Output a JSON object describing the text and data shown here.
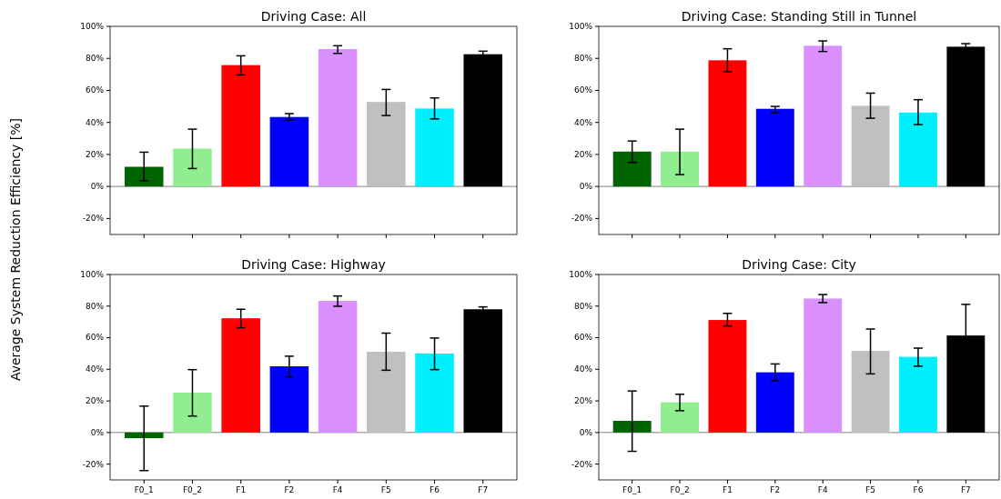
{
  "chart_data": [
    {
      "type": "bar",
      "title": "Driving Case: All",
      "ylabel": "Average System Reduction Efficiency [%]",
      "categories": [
        null,
        null,
        null,
        null,
        null,
        null,
        null,
        null
      ],
      "values": [
        12.3,
        23.7,
        75.8,
        43.4,
        85.8,
        52.8,
        48.7,
        82.6
      ],
      "colors": [
        "#006400",
        "#90ee90",
        "#ff0000",
        "#0000ff",
        "#da91ff",
        "#c0c0c0",
        "#00efff",
        "#000000"
      ],
      "errors": [
        [
          3.6,
          21.4
        ],
        [
          11.2,
          35.8
        ],
        [
          69.7,
          81.6
        ],
        [
          41.3,
          45.5
        ],
        [
          83.1,
          87.9
        ],
        [
          44.3,
          60.6
        ],
        [
          42.2,
          55.3
        ],
        1.9
      ],
      "ylim": [
        -30,
        100
      ],
      "yticks": [
        {
          "value": -20,
          "label": "-20%"
        },
        {
          "value": 0,
          "label": "0%"
        },
        {
          "value": 20,
          "label": "20%"
        },
        {
          "value": 40,
          "label": "40%"
        },
        {
          "value": 60,
          "label": "60%"
        },
        {
          "value": 80,
          "label": "80%"
        },
        {
          "value": 100,
          "label": "100%"
        }
      ],
      "ref_lines": [
        {
          "axis": "y",
          "value": 0,
          "color": "#808080"
        }
      ]
    },
    {
      "type": "bar",
      "title": "Driving Case: Standing Still in Tunnel",
      "categories": [
        null,
        null,
        null,
        null,
        null,
        null,
        null,
        null
      ],
      "values": [
        21.8,
        21.8,
        78.8,
        48.5,
        87.9,
        50.4,
        46.2,
        87.3
      ],
      "colors": [
        "#006400",
        "#90ee90",
        "#ff0000",
        "#0000ff",
        "#da91ff",
        "#c0c0c0",
        "#00efff",
        "#000000"
      ],
      "errors": [
        [
          15.0,
          28.4
        ],
        [
          7.4,
          35.8
        ],
        [
          71.6,
          86.0
        ],
        [
          46.2,
          50.0
        ],
        [
          84.3,
          90.9
        ],
        [
          42.6,
          58.3
        ],
        [
          38.6,
          54.2
        ],
        1.9
      ],
      "ylim": [
        -30,
        100
      ],
      "yticks": [
        {
          "value": -20,
          "label": "-20%"
        },
        {
          "value": 0,
          "label": "0%"
        },
        {
          "value": 20,
          "label": "20%"
        },
        {
          "value": 40,
          "label": "40%"
        },
        {
          "value": 60,
          "label": "60%"
        },
        {
          "value": 80,
          "label": "80%"
        },
        {
          "value": 100,
          "label": "100%"
        }
      ],
      "ref_lines": [
        {
          "axis": "y",
          "value": 0,
          "color": "#808080"
        }
      ]
    },
    {
      "type": "bar",
      "title": "Driving Case: Highway",
      "categories": [
        "F0_1",
        "F0_2",
        "F1",
        "F2",
        "F4",
        "F5",
        "F6",
        "F7"
      ],
      "values": [
        -3.6,
        25.2,
        72.3,
        41.9,
        83.3,
        51.1,
        50.0,
        78.0
      ],
      "colors": [
        "#006400",
        "#90ee90",
        "#ff0000",
        "#0000ff",
        "#da91ff",
        "#c0c0c0",
        "#00efff",
        "#000000"
      ],
      "errors": [
        [
          -24.1,
          16.7
        ],
        [
          10.4,
          39.8
        ],
        [
          66.3,
          78.0
        ],
        [
          35.2,
          48.3
        ],
        [
          79.9,
          86.4
        ],
        [
          39.4,
          62.9
        ],
        [
          39.8,
          59.8
        ],
        1.5
      ],
      "ylim": [
        -30,
        100
      ],
      "yticks": [
        {
          "value": -20,
          "label": "-20%"
        },
        {
          "value": 0,
          "label": "0%"
        },
        {
          "value": 20,
          "label": "20%"
        },
        {
          "value": 40,
          "label": "40%"
        },
        {
          "value": 60,
          "label": "60%"
        },
        {
          "value": 80,
          "label": "80%"
        },
        {
          "value": 100,
          "label": "100%"
        }
      ],
      "ref_lines": [
        {
          "axis": "y",
          "value": 0,
          "color": "#808080"
        }
      ]
    },
    {
      "type": "bar",
      "title": "Driving Case: City",
      "categories": [
        "F0_1",
        "F0_2",
        "F1",
        "F2",
        "F4",
        "F5",
        "F6",
        "F7"
      ],
      "values": [
        7.4,
        19.1,
        71.2,
        38.1,
        84.8,
        51.7,
        47.9,
        61.4
      ],
      "colors": [
        "#006400",
        "#90ee90",
        "#ff0000",
        "#0000ff",
        "#da91ff",
        "#c0c0c0",
        "#00efff",
        "#000000"
      ],
      "errors": [
        [
          -11.9,
          26.3
        ],
        [
          13.8,
          24.2
        ],
        [
          67.4,
          75.4
        ],
        [
          32.8,
          43.4
        ],
        [
          82.2,
          87.3
        ],
        [
          37.1,
          65.5
        ],
        [
          42.0,
          53.4
        ],
        19.7
      ],
      "ylim": [
        -30,
        100
      ],
      "yticks": [
        {
          "value": -20,
          "label": "-20%"
        },
        {
          "value": 0,
          "label": "0%"
        },
        {
          "value": 20,
          "label": "20%"
        },
        {
          "value": 40,
          "label": "40%"
        },
        {
          "value": 60,
          "label": "60%"
        },
        {
          "value": 80,
          "label": "80%"
        },
        {
          "value": 100,
          "label": "100%"
        }
      ],
      "ref_lines": [
        {
          "axis": "y",
          "value": 0,
          "color": "#808080"
        }
      ]
    }
  ]
}
